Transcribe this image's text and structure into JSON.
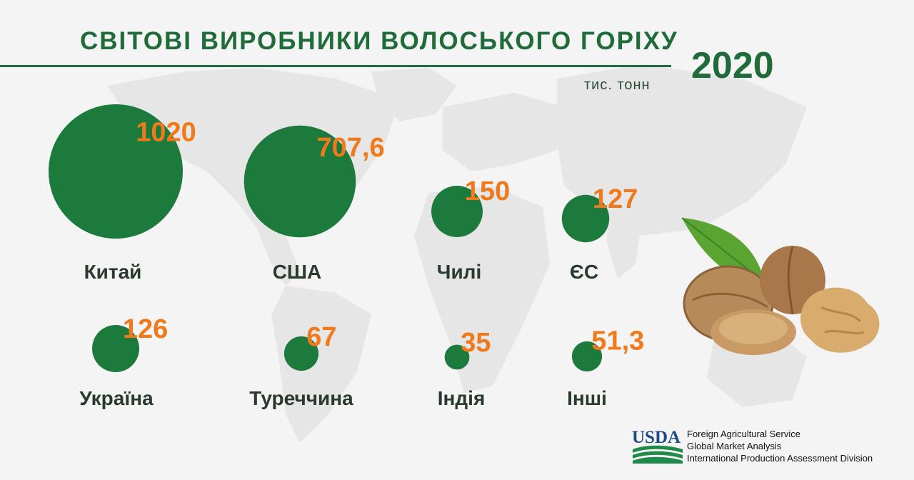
{
  "header": {
    "title": "СВІТОВІ ВИРОБНИКИ ВОЛОСЬКОГО ГОРІХУ",
    "year": "2020",
    "unit": "тис. тонн"
  },
  "colors": {
    "bubble": "#1b7a3c",
    "value_label": "#f07a1a",
    "country_label": "#2a3a2e",
    "title": "#1f6b3a"
  },
  "chart_data": {
    "type": "bubble",
    "title": "СВІТОВІ ВИРОБНИКИ ВОЛОСЬКОГО ГОРІХУ",
    "unit": "тис. тонн",
    "year": "2020",
    "categories": [
      "Китай",
      "США",
      "Чилі",
      "ЄС",
      "Україна",
      "Туреччина",
      "Індія",
      "Інші"
    ],
    "values": [
      1020,
      707.6,
      150,
      127,
      126,
      67,
      35,
      51.3
    ],
    "value_labels": [
      "1020",
      "707,6",
      "150",
      "127",
      "126",
      "67",
      "35",
      "51,3"
    ]
  },
  "source": {
    "logo_text": "USDA",
    "lines": [
      "Foreign Agricultural Service",
      "Global Market Analysis",
      "International Production Assessment Division"
    ]
  },
  "icons": [
    "world-map-icon",
    "walnut-icon",
    "usda-logo-icon"
  ]
}
